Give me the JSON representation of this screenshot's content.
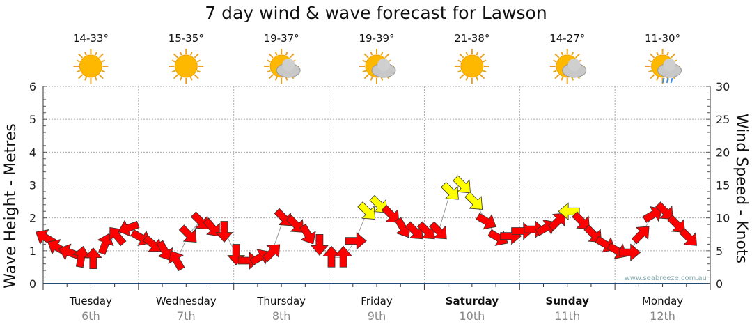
{
  "title": "7 day wind & wave forecast for Lawson",
  "watermark": "www.seabreeze.com.au",
  "days": [
    {
      "name": "Tuesday",
      "date": "6th",
      "temp": "14-33°",
      "icon": "sun",
      "bold": false
    },
    {
      "name": "Wednesday",
      "date": "7th",
      "temp": "15-35°",
      "icon": "sun",
      "bold": false
    },
    {
      "name": "Thursday",
      "date": "8th",
      "temp": "19-37°",
      "icon": "sun-cloud",
      "bold": false
    },
    {
      "name": "Friday",
      "date": "9th",
      "temp": "19-39°",
      "icon": "sun-cloud",
      "bold": false
    },
    {
      "name": "Saturday",
      "date": "10th",
      "temp": "21-38°",
      "icon": "sun",
      "bold": true
    },
    {
      "name": "Sunday",
      "date": "11th",
      "temp": "14-27°",
      "icon": "sun-cloud",
      "bold": true
    },
    {
      "name": "Monday",
      "date": "12th",
      "temp": "11-30°",
      "icon": "sun-cloud-rain",
      "bold": false
    }
  ],
  "colors": {
    "light": "#ff0000",
    "strong": "#ffff00",
    "axis": "#1f4e79"
  },
  "chart_data": {
    "type": "scatter",
    "title": "7 day wind & wave forecast for Lawson",
    "ylabel": "Wave Height - Metres",
    "y2label": "Wind Speed - Knots",
    "ylim": [
      0,
      6
    ],
    "y2lim": [
      0,
      30
    ],
    "yticks": [
      "0",
      "1",
      "2",
      "3",
      "4",
      "5",
      "6"
    ],
    "y2ticks": [
      "0",
      "5",
      "10",
      "15",
      "20",
      "25",
      "30"
    ],
    "grid": true,
    "points_per_day": 8,
    "wave_height": [
      1.4,
      1.1,
      0.95,
      0.8,
      0.75,
      1.2,
      1.45,
      1.7,
      1.4,
      1.2,
      1.0,
      0.7,
      1.5,
      1.9,
      1.7,
      1.6,
      0.9,
      0.7,
      0.8,
      0.95,
      2.0,
      1.8,
      1.5,
      1.2,
      0.8,
      0.8,
      1.3,
      2.2,
      2.4,
      2.1,
      1.7,
      1.6,
      1.6,
      1.6,
      2.8,
      3.0,
      2.5,
      1.9,
      1.4,
      1.45,
      1.6,
      1.65,
      1.7,
      1.9,
      2.2,
      1.9,
      1.5,
      1.2,
      1.0,
      0.95,
      1.5,
      2.1,
      2.2,
      1.8,
      1.4
    ],
    "wind_dir": [
      300,
      300,
      290,
      10,
      0,
      20,
      320,
      250,
      120,
      130,
      150,
      330,
      135,
      135,
      140,
      180,
      180,
      90,
      60,
      45,
      135,
      135,
      150,
      180,
      0,
      0,
      90,
      135,
      135,
      135,
      150,
      135,
      135,
      135,
      135,
      135,
      135,
      120,
      120,
      90,
      90,
      90,
      60,
      45,
      270,
      135,
      135,
      120,
      120,
      90,
      45,
      60,
      135,
      135,
      135
    ],
    "wind_strength": [
      "light",
      "light",
      "light",
      "light",
      "light",
      "light",
      "light",
      "light",
      "light",
      "light",
      "light",
      "light",
      "light",
      "light",
      "light",
      "light",
      "light",
      "light",
      "light",
      "light",
      "light",
      "light",
      "light",
      "light",
      "light",
      "light",
      "light",
      "strong",
      "strong",
      "light",
      "light",
      "light",
      "light",
      "light",
      "strong",
      "strong",
      "strong",
      "light",
      "light",
      "light",
      "light",
      "light",
      "light",
      "light",
      "strong",
      "light",
      "light",
      "light",
      "light",
      "light",
      "light",
      "light",
      "light",
      "light",
      "light"
    ]
  }
}
